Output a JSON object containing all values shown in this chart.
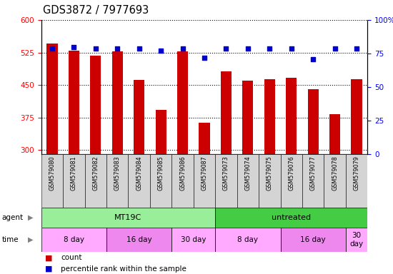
{
  "title": "GDS3872 / 7977693",
  "samples": [
    "GSM579080",
    "GSM579081",
    "GSM579082",
    "GSM579083",
    "GSM579084",
    "GSM579085",
    "GSM579086",
    "GSM579087",
    "GSM579073",
    "GSM579074",
    "GSM579075",
    "GSM579076",
    "GSM579077",
    "GSM579078",
    "GSM579079"
  ],
  "counts": [
    545,
    530,
    518,
    527,
    462,
    392,
    527,
    362,
    482,
    460,
    463,
    466,
    440,
    382,
    463
  ],
  "percentile_ranks": [
    79,
    80,
    79,
    79,
    79,
    77,
    79,
    72,
    79,
    79,
    79,
    79,
    71,
    79,
    79
  ],
  "ylim_left": [
    290,
    600
  ],
  "ylim_right": [
    0,
    100
  ],
  "yticks_left": [
    300,
    375,
    450,
    525,
    600
  ],
  "yticks_right": [
    0,
    25,
    50,
    75,
    100
  ],
  "ytick_right_labels": [
    "0",
    "25",
    "50",
    "75",
    "100%"
  ],
  "bar_color": "#cc0000",
  "dot_color": "#0000cc",
  "agent_groups": [
    {
      "label": "MT19C",
      "start": 0,
      "end": 8,
      "color": "#99ee99"
    },
    {
      "label": "untreated",
      "start": 8,
      "end": 15,
      "color": "#44cc44"
    }
  ],
  "time_groups": [
    {
      "label": "8 day",
      "start": 0,
      "end": 3,
      "color": "#ffaaff"
    },
    {
      "label": "16 day",
      "start": 3,
      "end": 6,
      "color": "#ee88ee"
    },
    {
      "label": "30 day",
      "start": 6,
      "end": 8,
      "color": "#ffaaff"
    },
    {
      "label": "8 day",
      "start": 8,
      "end": 11,
      "color": "#ffaaff"
    },
    {
      "label": "16 day",
      "start": 11,
      "end": 14,
      "color": "#ee88ee"
    },
    {
      "label": "30\nday",
      "start": 14,
      "end": 15,
      "color": "#ffaaff"
    }
  ],
  "legend_count_label": "count",
  "legend_pct_label": "percentile rank within the sample",
  "title_fontsize": 10.5,
  "tick_fontsize": 7.5,
  "bar_bottom": 290
}
